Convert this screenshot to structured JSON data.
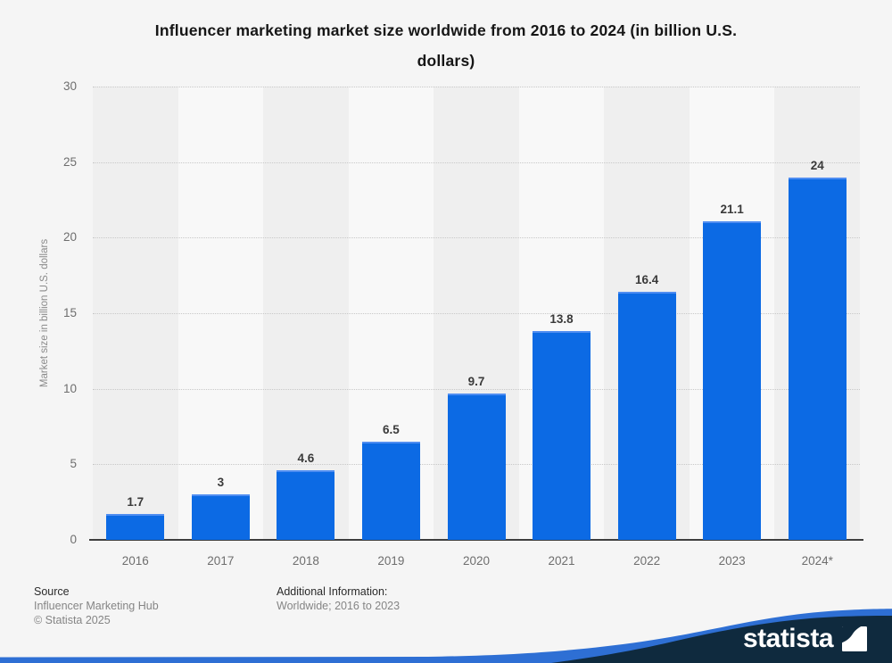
{
  "chart_data": {
    "type": "bar",
    "title": "Influencer marketing market size worldwide from 2016 to 2024 (in billion U.S. dollars)",
    "title_lines": [
      "Influencer marketing market size worldwide from 2016 to 2024 (in billion U.S.",
      "dollars)"
    ],
    "categories": [
      "2016",
      "2017",
      "2018",
      "2019",
      "2020",
      "2021",
      "2022",
      "2023",
      "2024*"
    ],
    "values": [
      1.7,
      3,
      4.6,
      6.5,
      9.7,
      13.8,
      16.4,
      21.1,
      24
    ],
    "value_labels": [
      "1.7",
      "3",
      "4.6",
      "6.5",
      "9.7",
      "13.8",
      "16.4",
      "21.1",
      "24"
    ],
    "xlabel": "",
    "ylabel": "Market size in billion U.S. dollars",
    "ylim": [
      0,
      30
    ],
    "yticks": [
      0,
      5,
      10,
      15,
      20,
      25,
      30
    ],
    "grid": "horizontal-dotted",
    "legend": "none",
    "bar_color": "#0c6ae4",
    "band_colors": [
      "#efefef",
      "#f8f8f8"
    ]
  },
  "footer": {
    "source_label": "Source",
    "source_lines": [
      "Influencer Marketing Hub",
      "© Statista 2025"
    ],
    "additional_label": "Additional Information:",
    "additional_lines": [
      "Worldwide; 2016 to 2023"
    ]
  },
  "branding": {
    "logo_text": "statista",
    "navy": "#0f2a3e",
    "blue": "#2e6fd4"
  }
}
